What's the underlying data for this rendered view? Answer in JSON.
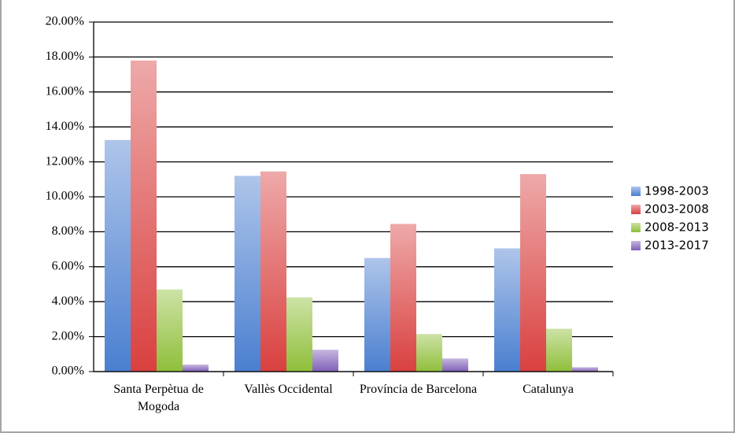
{
  "chart_data": {
    "type": "bar",
    "categories": [
      "Santa Perpètua de Mogoda",
      "Vallès Occidental",
      "Província de Barcelona",
      "Catalunya"
    ],
    "series": [
      {
        "name": "1998-2003",
        "color": "#4a7fd0",
        "values": [
          13.25,
          11.2,
          6.5,
          7.05
        ]
      },
      {
        "name": "2003-2008",
        "color": "#d9403f",
        "values": [
          17.8,
          11.45,
          8.45,
          11.3
        ]
      },
      {
        "name": "2008-2013",
        "color": "#8fbf3a",
        "values": [
          4.7,
          4.25,
          2.15,
          2.45
        ]
      },
      {
        "name": "2013-2017",
        "color": "#8060b8",
        "values": [
          0.4,
          1.25,
          0.75,
          0.25
        ]
      }
    ],
    "ylim": [
      0,
      20
    ],
    "yticks": [
      {
        "value": 0,
        "label": "0.00%"
      },
      {
        "value": 2,
        "label": "2.00%"
      },
      {
        "value": 4,
        "label": "4.00%"
      },
      {
        "value": 6,
        "label": "6.00%"
      },
      {
        "value": 8,
        "label": "8.00%"
      },
      {
        "value": 10,
        "label": "10.00%"
      },
      {
        "value": 12,
        "label": "12.00%"
      },
      {
        "value": 14,
        "label": "14.00%"
      },
      {
        "value": 16,
        "label": "16.00%"
      },
      {
        "value": 18,
        "label": "18.00%"
      },
      {
        "value": 20,
        "label": "20.00%"
      }
    ],
    "grid": true,
    "legend": "right"
  }
}
